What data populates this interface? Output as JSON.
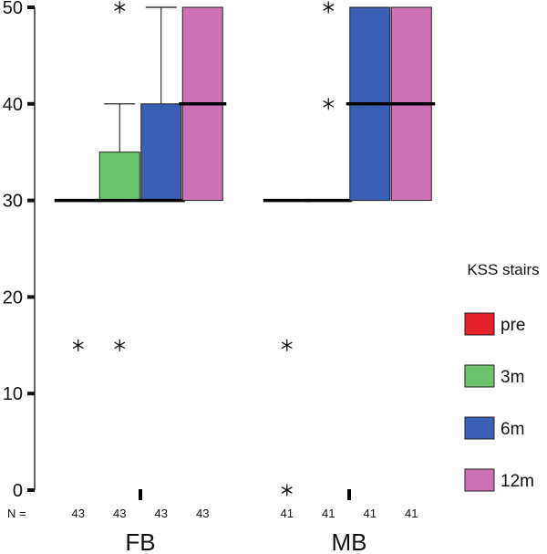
{
  "chart_data": {
    "type": "boxplot",
    "ylim": [
      0,
      50
    ],
    "yticks": [
      0,
      10,
      20,
      30,
      40,
      50
    ],
    "n_prefix": "N =",
    "groups": [
      {
        "name": "FB",
        "series": [
          {
            "series": "pre",
            "n": "43",
            "q1": 30,
            "median": 30,
            "q3": 30,
            "whisker_low": 30,
            "whisker_high": 30,
            "outliers": [
              15
            ]
          },
          {
            "series": "3m",
            "n": "43",
            "q1": 30,
            "median": 30,
            "q3": 35,
            "whisker_low": 30,
            "whisker_high": 40,
            "outliers": [
              15,
              50
            ]
          },
          {
            "series": "6m",
            "n": "43",
            "q1": 30,
            "median": 30,
            "q3": 40,
            "whisker_low": 30,
            "whisker_high": 50,
            "outliers": []
          },
          {
            "series": "12m",
            "n": "43",
            "q1": 30,
            "median": 40,
            "q3": 50,
            "whisker_low": 30,
            "whisker_high": 50,
            "outliers": []
          }
        ]
      },
      {
        "name": "MB",
        "series": [
          {
            "series": "pre",
            "n": "41",
            "q1": 30,
            "median": 30,
            "q3": 30,
            "whisker_low": 30,
            "whisker_high": 30,
            "outliers": [
              15,
              0
            ]
          },
          {
            "series": "3m",
            "n": "41",
            "q1": 30,
            "median": 30,
            "q3": 30,
            "whisker_low": 30,
            "whisker_high": 30,
            "outliers": [
              50,
              40
            ]
          },
          {
            "series": "6m",
            "n": "41",
            "q1": 30,
            "median": 40,
            "q3": 50,
            "whisker_low": 30,
            "whisker_high": 50,
            "outliers": []
          },
          {
            "series": "12m",
            "n": "41",
            "q1": 30,
            "median": 40,
            "q3": 50,
            "whisker_low": 30,
            "whisker_high": 50,
            "outliers": []
          }
        ]
      }
    ],
    "legend": {
      "title": "KSS stairs",
      "items": [
        {
          "label": "pre",
          "color": "#e8202a"
        },
        {
          "label": "3m",
          "color": "#6cc46a"
        },
        {
          "label": "6m",
          "color": "#3a5fb4"
        },
        {
          "label": "12m",
          "color": "#cd72b4"
        }
      ],
      "placement": "right"
    }
  }
}
